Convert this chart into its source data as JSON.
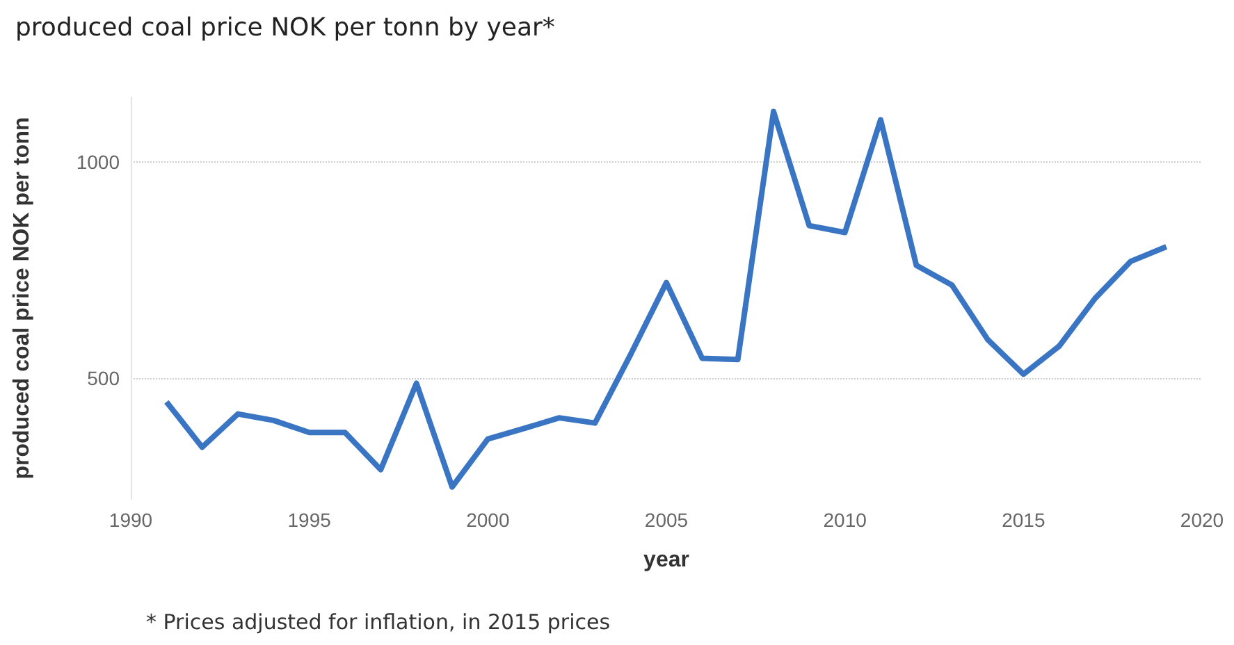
{
  "chart_data": {
    "type": "line",
    "title": "produced coal price NOK per tonn by year*",
    "xlabel": "year",
    "ylabel": "produced coal price NOK per tonn",
    "annotations": [
      "* Prices adjusted for inflation, in 2015 prices"
    ],
    "x": [
      1991,
      1992,
      1993,
      1994,
      1995,
      1996,
      1997,
      1998,
      1999,
      2000,
      2001,
      2002,
      2003,
      2004,
      2005,
      2006,
      2007,
      2008,
      2009,
      2010,
      2011,
      2012,
      2013,
      2014,
      2015,
      2016,
      2017,
      2018,
      2019
    ],
    "series": [
      {
        "color": "#3a75c4",
        "values": [
          445,
          340,
          417,
          402,
          374,
          374,
          288,
          488,
          248,
          359,
          383,
          408,
          396,
          555,
          721,
          546,
          543,
          1117,
          853,
          837,
          1098,
          761,
          715,
          589,
          509,
          574,
          684,
          770,
          804
        ]
      }
    ],
    "xlim": [
      1990,
      2020
    ],
    "xticks": [
      1990,
      1995,
      2000,
      2005,
      2010,
      2015,
      2020
    ],
    "ylim": [
      220,
      1150
    ],
    "yticks": [
      500,
      1000
    ],
    "grid": "y",
    "line_style": "solid",
    "marker": "none"
  }
}
